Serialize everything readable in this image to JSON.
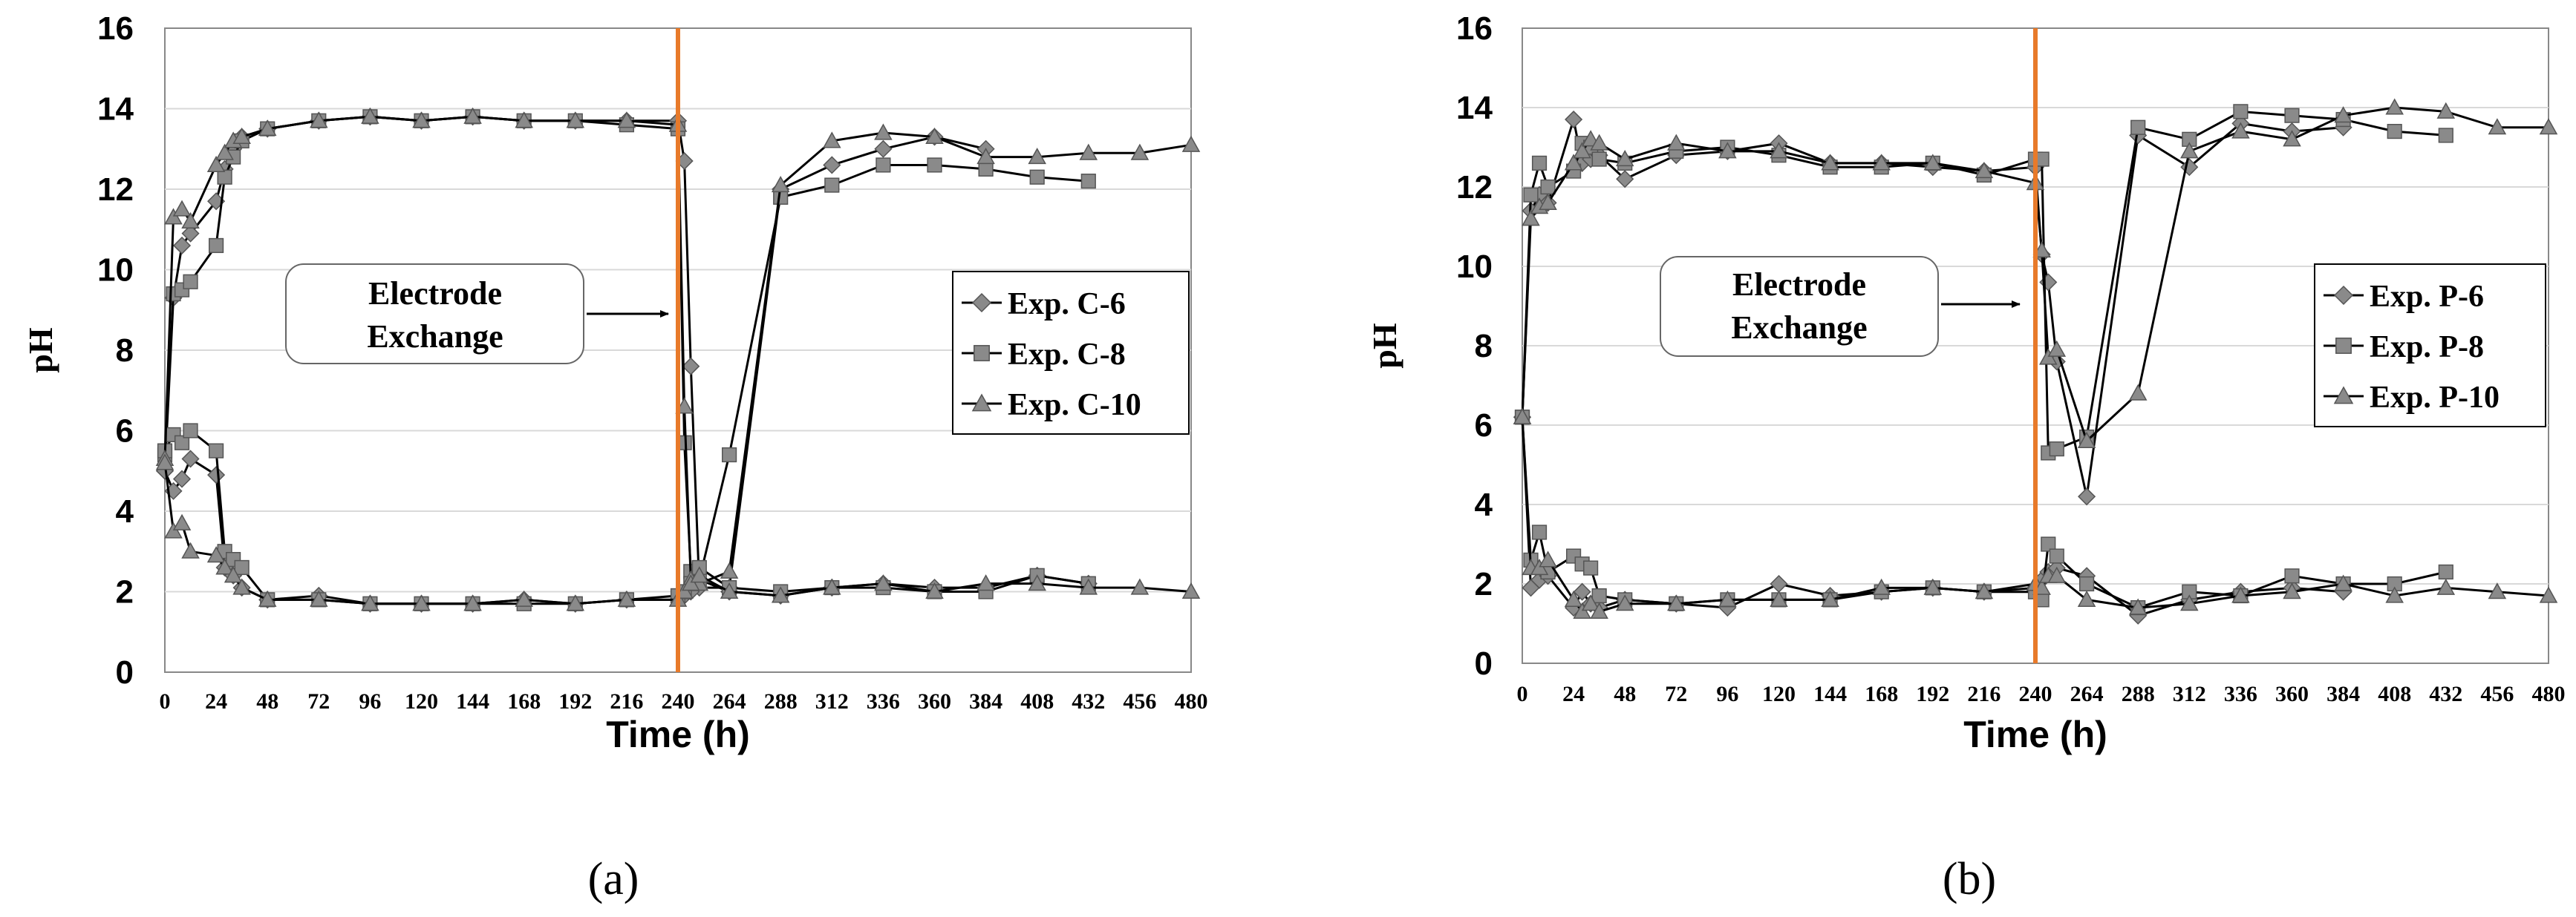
{
  "figure": {
    "captions": [
      "(a)",
      "(b)"
    ]
  },
  "colors": {
    "plot_bg": "#ffffff",
    "grid": "#d9d9d9",
    "border": "#888888",
    "series_line": "#000000",
    "marker": "#8a8a8a",
    "marker_stroke": "#555555",
    "exchange_line": "#e87a2a",
    "text": "#000000"
  },
  "chart_data": [
    {
      "type": "line",
      "panel": "a",
      "xlabel": "Time (h)",
      "ylabel": "pH",
      "xlim": [
        0,
        480
      ],
      "ylim": [
        0,
        16
      ],
      "xticks": [
        0,
        24,
        48,
        72,
        96,
        120,
        144,
        168,
        192,
        216,
        240,
        264,
        288,
        312,
        336,
        360,
        384,
        408,
        432,
        456,
        480
      ],
      "yticks": [
        0,
        2,
        4,
        6,
        8,
        10,
        12,
        14,
        16
      ],
      "vline_x": 240,
      "annotation": {
        "line1": "Electrode",
        "line2": "Exchange"
      },
      "legend_position": "right",
      "series": [
        {
          "name": "Exp. C-6",
          "marker": "diamond",
          "segments": [
            {
              "x": [
                0,
                4,
                8,
                12,
                24,
                28,
                32,
                36,
                48,
                72,
                96,
                120,
                144,
                168,
                192,
                216,
                240,
                243,
                246,
                250,
                264,
                288,
                312,
                336,
                360,
                384
              ],
              "y": [
                5.0,
                9.3,
                10.6,
                10.9,
                11.7,
                12.5,
                13.0,
                13.3,
                13.5,
                13.7,
                13.8,
                13.7,
                13.8,
                13.7,
                13.7,
                13.7,
                13.7,
                12.7,
                7.6,
                2.1,
                2.1,
                12.0,
                12.6,
                13.0,
                13.3,
                13.0
              ]
            },
            {
              "x": [
                0,
                4,
                8,
                12,
                24,
                28,
                32,
                36,
                48,
                72,
                96,
                120,
                144,
                168,
                192,
                216,
                240,
                243,
                246,
                250,
                264,
                288,
                312,
                336,
                360,
                384,
                408,
                432
              ],
              "y": [
                5.0,
                4.5,
                4.8,
                5.3,
                4.9,
                2.6,
                2.4,
                2.1,
                1.8,
                1.9,
                1.7,
                1.7,
                1.7,
                1.8,
                1.7,
                1.8,
                1.8,
                1.9,
                2.0,
                2.3,
                2.0,
                1.9,
                2.1,
                2.2,
                2.1,
                2.1,
                2.4,
                2.2
              ]
            }
          ]
        },
        {
          "name": "Exp. C-8",
          "marker": "square",
          "segments": [
            {
              "x": [
                0,
                4,
                8,
                12,
                24,
                28,
                32,
                36,
                48,
                72,
                96,
                120,
                144,
                168,
                192,
                216,
                240,
                243,
                246,
                250,
                264,
                288,
                312,
                336,
                360,
                384,
                408,
                432
              ],
              "y": [
                5.4,
                9.4,
                9.5,
                9.7,
                10.6,
                12.3,
                12.8,
                13.2,
                13.5,
                13.7,
                13.8,
                13.7,
                13.8,
                13.7,
                13.7,
                13.6,
                13.5,
                5.7,
                2.5,
                2.3,
                5.4,
                11.8,
                12.1,
                12.6,
                12.6,
                12.5,
                12.3,
                12.2
              ]
            },
            {
              "x": [
                0,
                4,
                8,
                12,
                24,
                28,
                32,
                36,
                48,
                72,
                96,
                120,
                144,
                168,
                192,
                216,
                240,
                243,
                246,
                250,
                264,
                288,
                312,
                336,
                360,
                384,
                408,
                432
              ],
              "y": [
                5.5,
                5.9,
                5.7,
                6.0,
                5.5,
                3.0,
                2.8,
                2.6,
                1.8,
                1.8,
                1.7,
                1.7,
                1.7,
                1.7,
                1.7,
                1.8,
                1.9,
                2.0,
                2.2,
                2.6,
                2.1,
                2.0,
                2.1,
                2.1,
                2.0,
                2.0,
                2.4,
                2.2
              ]
            }
          ]
        },
        {
          "name": "Exp. C-10",
          "marker": "triangle",
          "segments": [
            {
              "x": [
                0,
                4,
                8,
                12,
                24,
                28,
                32,
                36,
                48,
                72,
                96,
                120,
                144,
                168,
                192,
                216,
                240,
                243,
                246,
                250,
                264,
                288,
                312,
                336,
                360,
                384,
                408,
                432,
                456,
                480
              ],
              "y": [
                5.3,
                11.3,
                11.5,
                11.2,
                12.6,
                12.9,
                13.2,
                13.3,
                13.5,
                13.7,
                13.8,
                13.7,
                13.8,
                13.7,
                13.7,
                13.7,
                13.6,
                6.6,
                2.3,
                2.2,
                2.5,
                12.1,
                13.2,
                13.4,
                13.3,
                12.8,
                12.8,
                12.9,
                12.9,
                13.1
              ]
            },
            {
              "x": [
                0,
                4,
                8,
                12,
                24,
                28,
                32,
                36,
                48,
                72,
                96,
                120,
                144,
                168,
                192,
                216,
                240,
                243,
                246,
                250,
                264,
                288,
                312,
                336,
                360,
                384,
                408,
                432,
                456,
                480
              ],
              "y": [
                5.2,
                3.5,
                3.7,
                3.0,
                2.9,
                2.6,
                2.4,
                2.1,
                1.8,
                1.8,
                1.7,
                1.7,
                1.7,
                1.8,
                1.7,
                1.8,
                1.8,
                2.0,
                2.2,
                2.4,
                2.0,
                1.9,
                2.1,
                2.2,
                2.0,
                2.2,
                2.2,
                2.1,
                2.1,
                2.0
              ]
            }
          ]
        }
      ]
    },
    {
      "type": "line",
      "panel": "b",
      "xlabel": "Time (h)",
      "ylabel": "pH",
      "xlim": [
        0,
        480
      ],
      "ylim": [
        0,
        16
      ],
      "xticks": [
        0,
        24,
        48,
        72,
        96,
        120,
        144,
        168,
        192,
        216,
        240,
        264,
        288,
        312,
        336,
        360,
        384,
        408,
        432,
        456,
        480
      ],
      "yticks": [
        0,
        2,
        4,
        6,
        8,
        10,
        12,
        14,
        16
      ],
      "vline_x": 240,
      "annotation": {
        "line1": "Electrode",
        "line2": "Exchange"
      },
      "legend_position": "right",
      "series": [
        {
          "name": "Exp. P-6",
          "marker": "diamond",
          "segments": [
            {
              "x": [
                0,
                4,
                8,
                12,
                24,
                28,
                32,
                36,
                48,
                72,
                96,
                120,
                144,
                168,
                192,
                216,
                240,
                243,
                246,
                250,
                264,
                288,
                312,
                336,
                360,
                384
              ],
              "y": [
                6.2,
                11.4,
                11.8,
                11.6,
                13.7,
                12.6,
                12.7,
                12.8,
                12.2,
                12.8,
                12.9,
                13.1,
                12.6,
                12.6,
                12.5,
                12.4,
                12.5,
                10.3,
                9.6,
                7.6,
                4.2,
                13.3,
                12.5,
                13.6,
                13.4,
                13.5
              ]
            },
            {
              "x": [
                0,
                4,
                8,
                12,
                24,
                28,
                32,
                36,
                48,
                72,
                96,
                120,
                144,
                168,
                192,
                216,
                240,
                243,
                246,
                250,
                264,
                288,
                312,
                336,
                360,
                384
              ],
              "y": [
                6.2,
                1.9,
                2.1,
                2.2,
                1.4,
                1.8,
                1.5,
                1.4,
                1.6,
                1.5,
                1.4,
                2.0,
                1.7,
                1.8,
                1.9,
                1.8,
                1.9,
                2.1,
                2.3,
                2.4,
                2.2,
                1.2,
                1.6,
                1.8,
                1.9,
                1.8
              ]
            }
          ]
        },
        {
          "name": "Exp. P-8",
          "marker": "square",
          "segments": [
            {
              "x": [
                0,
                4,
                8,
                12,
                24,
                28,
                32,
                36,
                48,
                72,
                96,
                120,
                144,
                168,
                192,
                216,
                240,
                243,
                246,
                250,
                264,
                288,
                312,
                336,
                360,
                384,
                408,
                432
              ],
              "y": [
                6.2,
                11.8,
                12.6,
                12.0,
                12.4,
                13.1,
                13.0,
                12.7,
                12.6,
                12.9,
                13.0,
                12.8,
                12.5,
                12.5,
                12.6,
                12.3,
                12.7,
                12.7,
                5.3,
                5.4,
                5.7,
                13.5,
                13.2,
                13.9,
                13.8,
                13.7,
                13.4,
                13.3
              ]
            },
            {
              "x": [
                0,
                4,
                8,
                12,
                24,
                28,
                32,
                36,
                48,
                72,
                96,
                120,
                144,
                168,
                192,
                216,
                240,
                243,
                246,
                250,
                264,
                288,
                312,
                336,
                360,
                384,
                408,
                432
              ],
              "y": [
                6.2,
                2.6,
                3.3,
                2.3,
                2.7,
                2.5,
                2.4,
                1.7,
                1.6,
                1.5,
                1.6,
                1.6,
                1.6,
                1.8,
                1.9,
                1.8,
                1.8,
                1.6,
                3.0,
                2.7,
                2.0,
                1.4,
                1.8,
                1.7,
                2.2,
                2.0,
                2.0,
                2.3
              ]
            }
          ]
        },
        {
          "name": "Exp. P-10",
          "marker": "triangle",
          "segments": [
            {
              "x": [
                0,
                4,
                8,
                12,
                24,
                28,
                32,
                36,
                48,
                72,
                96,
                120,
                144,
                168,
                192,
                216,
                240,
                243,
                246,
                250,
                264,
                288,
                312,
                336,
                360,
                384,
                408,
                432,
                456,
                480
              ],
              "y": [
                6.2,
                11.2,
                11.5,
                11.6,
                12.6,
                12.9,
                13.2,
                13.1,
                12.7,
                13.1,
                12.9,
                12.9,
                12.6,
                12.6,
                12.6,
                12.4,
                12.1,
                10.4,
                7.7,
                7.9,
                5.6,
                6.8,
                12.9,
                13.4,
                13.2,
                13.8,
                14.0,
                13.9,
                13.5,
                13.5
              ]
            },
            {
              "x": [
                0,
                4,
                8,
                12,
                24,
                28,
                32,
                36,
                48,
                72,
                96,
                120,
                144,
                168,
                192,
                216,
                240,
                243,
                246,
                250,
                264,
                288,
                312,
                336,
                360,
                384,
                408,
                432,
                456,
                480
              ],
              "y": [
                6.2,
                2.4,
                2.4,
                2.6,
                1.6,
                1.3,
                1.5,
                1.3,
                1.5,
                1.5,
                1.6,
                1.6,
                1.6,
                1.9,
                1.9,
                1.8,
                2.0,
                1.9,
                2.2,
                2.2,
                1.6,
                1.4,
                1.5,
                1.7,
                1.8,
                2.0,
                1.7,
                1.9,
                1.8,
                1.7
              ]
            }
          ]
        }
      ]
    }
  ]
}
